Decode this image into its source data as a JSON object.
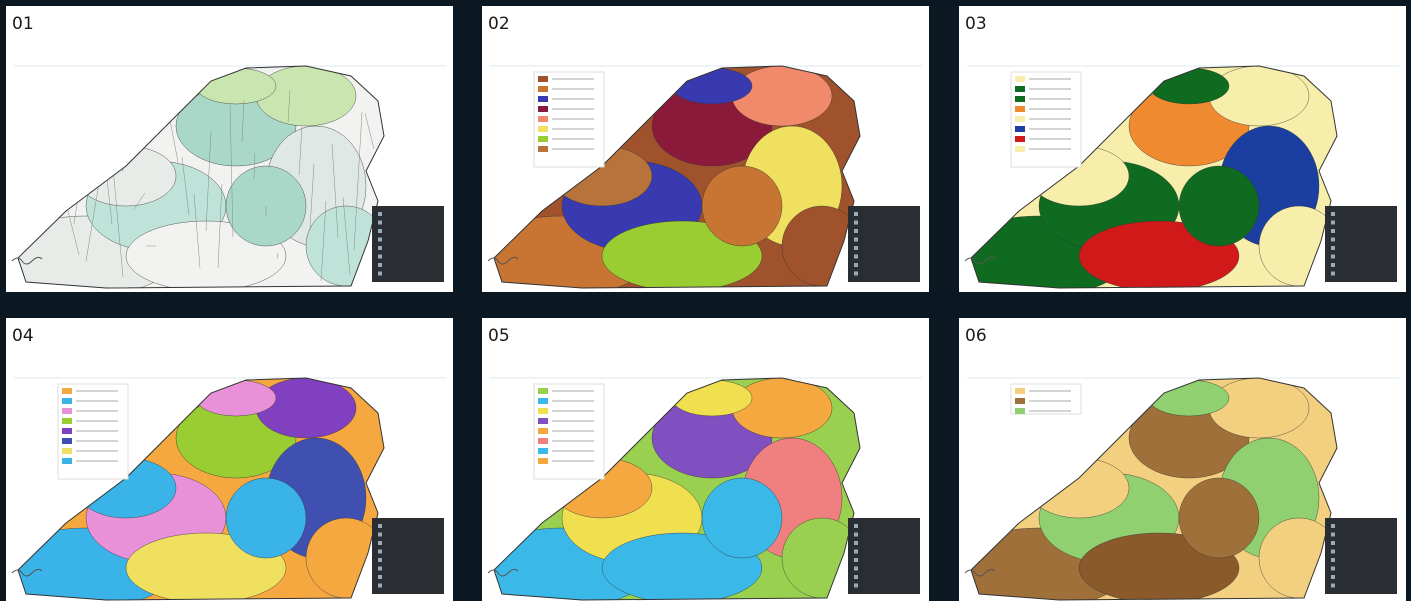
{
  "panels": [
    {
      "label": "01"
    },
    {
      "label": "02"
    },
    {
      "label": "03"
    },
    {
      "label": "04"
    },
    {
      "label": "05"
    },
    {
      "label": "06"
    }
  ]
}
